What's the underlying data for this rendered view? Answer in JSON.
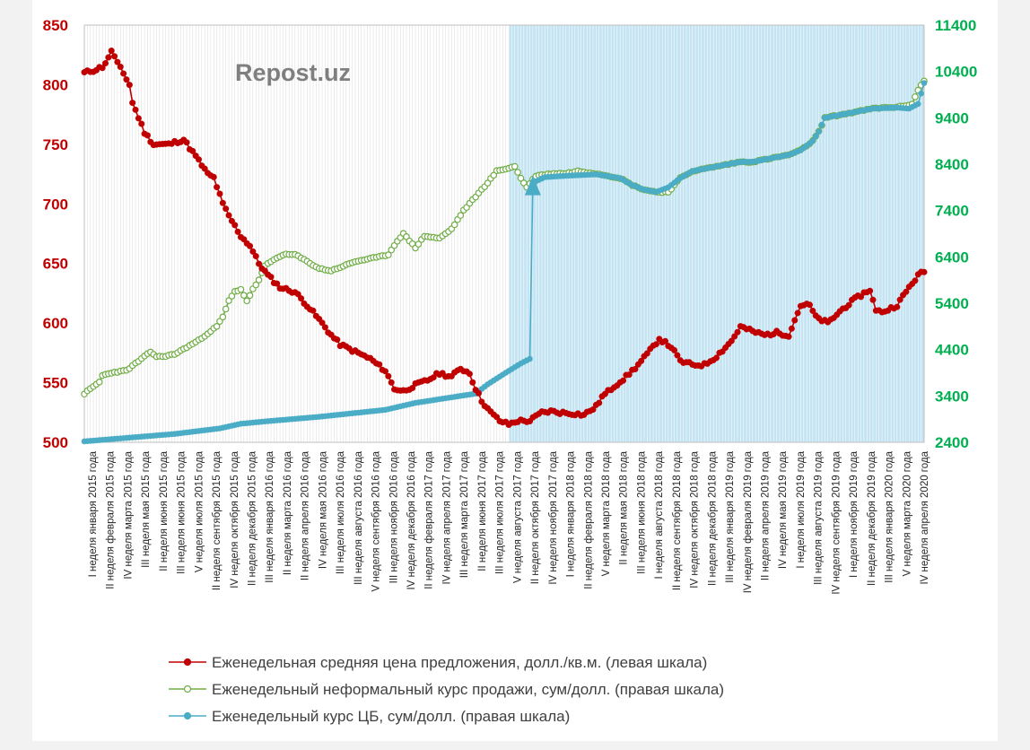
{
  "watermark": "Repost.uz",
  "chart_data": {
    "type": "line",
    "title": "",
    "xlabel": "",
    "ylabel": "",
    "ylim_left": [
      500,
      850
    ],
    "ylim_right": [
      2400,
      11400
    ],
    "left_ticks": [
      500,
      550,
      600,
      650,
      700,
      750,
      800,
      850
    ],
    "right_ticks": [
      2400,
      3400,
      4400,
      5400,
      6400,
      7400,
      8400,
      9400,
      10400,
      11400
    ],
    "n_weeks": 280,
    "shaded_from_week": 141,
    "colors": {
      "price": "#c00000",
      "informal": "#70ad47",
      "cb": "#4bacc6",
      "left_axis": "#c00000",
      "right_axis": "#00b050",
      "shade": "#c5e4f3",
      "grid": "#d9d9d9"
    },
    "x_tick_labels": [
      "I неделя января 2015 года",
      "II неделя февраля 2015 года",
      "IV неделя марта 2015 года",
      "III неделя мая 2015 года",
      "II неделя июня 2015 года",
      "III неделя июня 2015 года",
      "V неделя июля 2015 года",
      "II неделя сентября 2015 года",
      "IV неделя октября 2015 года",
      "II неделя декабря 2015 года",
      "III неделя января 2016 года",
      "II неделя марта 2016 года",
      "II неделя апреля 2016 года",
      "IV неделя мая 2016 года",
      "III неделя июля 2016 года",
      "III неделя августа 2016 года",
      "V неделя сентября 2016 года",
      "III неделя ноября 2016 года",
      "IV неделя декабря 2016 года",
      "II неделя февраля 2017 года",
      "IV неделя апреля 2017 года",
      "III неделя марта 2017 года",
      "II неделя июня 2017 года",
      "III неделя июля 2017 года",
      "V неделя августа 2017 года",
      "II неделя октября 2017 года",
      "IV неделя ноября 2017 года",
      "I неделя января 2018 года",
      "II неделя февраля 2018 года",
      "V неделя марта 2018 года",
      "II неделя мая 2018 года",
      "III неделя июня 2018 года",
      "I неделя августа 2018 года",
      "II неделя сентября 2018 года",
      "IV неделя октября 2018 года",
      "II неделя декабря 2018 года",
      "III неделя января 2019 года",
      "IV неделя февраля 2019 года",
      "II неделя апреля 2019 года",
      "IV неделя мая 2019 года",
      "I неделя июля 2019 года",
      "III неделя августа 2019 года",
      "IV неделя сентября 2019 года",
      "I неделя ноября 2019 года",
      "II неделя декабря 2019 года",
      "III неделя января 2020 года",
      "V неделя марта 2020 года",
      "IV неделя апреля 2020 года"
    ],
    "series": [
      {
        "name": "Еженедельная средняя цена предложения, долл./кв.м. (левая шкала)",
        "axis": "left",
        "marker": "filled",
        "anchors": [
          [
            0,
            810
          ],
          [
            3,
            812
          ],
          [
            6,
            815
          ],
          [
            8,
            822
          ],
          [
            9,
            829
          ],
          [
            11,
            818
          ],
          [
            14,
            805
          ],
          [
            15,
            800
          ],
          [
            16,
            785
          ],
          [
            20,
            760
          ],
          [
            23,
            750
          ],
          [
            28,
            750
          ],
          [
            33,
            754
          ],
          [
            37,
            740
          ],
          [
            41,
            725
          ],
          [
            43,
            722
          ],
          [
            46,
            700
          ],
          [
            48,
            690
          ],
          [
            52,
            673
          ],
          [
            55,
            665
          ],
          [
            58,
            650
          ],
          [
            61,
            640
          ],
          [
            65,
            630
          ],
          [
            70,
            626
          ],
          [
            74,
            615
          ],
          [
            78,
            603
          ],
          [
            82,
            590
          ],
          [
            85,
            582
          ],
          [
            90,
            576
          ],
          [
            95,
            570
          ],
          [
            100,
            560
          ],
          [
            103,
            545
          ],
          [
            106,
            543
          ],
          [
            110,
            548
          ],
          [
            114,
            552
          ],
          [
            118,
            558
          ],
          [
            122,
            555
          ],
          [
            125,
            562
          ],
          [
            128,
            558
          ],
          [
            130,
            545
          ],
          [
            132,
            535
          ],
          [
            135,
            525
          ],
          [
            138,
            518
          ],
          [
            141,
            515
          ],
          [
            144,
            518
          ],
          [
            148,
            518
          ],
          [
            152,
            525
          ],
          [
            155,
            526
          ],
          [
            158,
            525
          ],
          [
            163,
            524
          ],
          [
            166,
            523
          ],
          [
            170,
            530
          ],
          [
            172,
            538
          ],
          [
            176,
            547
          ],
          [
            180,
            555
          ],
          [
            184,
            565
          ],
          [
            188,
            577
          ],
          [
            191,
            587
          ],
          [
            195,
            580
          ],
          [
            198,
            568
          ],
          [
            202,
            565
          ],
          [
            206,
            565
          ],
          [
            210,
            572
          ],
          [
            215,
            585
          ],
          [
            218,
            597
          ],
          [
            222,
            593
          ],
          [
            226,
            590
          ],
          [
            230,
            592
          ],
          [
            234,
            590
          ],
          [
            238,
            615
          ],
          [
            241,
            615
          ],
          [
            243,
            605
          ],
          [
            247,
            600
          ],
          [
            252,
            612
          ],
          [
            256,
            620
          ],
          [
            259,
            625
          ],
          [
            261,
            628
          ],
          [
            263,
            610
          ],
          [
            266,
            610
          ],
          [
            270,
            615
          ],
          [
            274,
            630
          ],
          [
            277,
            640
          ],
          [
            280,
            645
          ],
          [
            283,
            645
          ],
          [
            287,
            645
          ],
          [
            289,
            650
          ],
          [
            290,
            655
          ]
        ]
      },
      {
        "name": "Еженедельный неформальный курс продажи, сум/долл. (правая шкала)",
        "axis": "right",
        "marker": "hollow",
        "anchors": [
          [
            0,
            3450
          ],
          [
            2,
            3550
          ],
          [
            5,
            3700
          ],
          [
            6,
            3840
          ],
          [
            9,
            3900
          ],
          [
            14,
            3950
          ],
          [
            18,
            4150
          ],
          [
            20,
            4250
          ],
          [
            22,
            4350
          ],
          [
            24,
            4250
          ],
          [
            26,
            4250
          ],
          [
            30,
            4300
          ],
          [
            34,
            4450
          ],
          [
            38,
            4600
          ],
          [
            42,
            4800
          ],
          [
            44,
            4900
          ],
          [
            46,
            5100
          ],
          [
            48,
            5450
          ],
          [
            50,
            5650
          ],
          [
            52,
            5700
          ],
          [
            54,
            5450
          ],
          [
            56,
            5700
          ],
          [
            58,
            5900
          ],
          [
            60,
            6200
          ],
          [
            62,
            6300
          ],
          [
            66,
            6450
          ],
          [
            70,
            6450
          ],
          [
            74,
            6300
          ],
          [
            78,
            6150
          ],
          [
            82,
            6100
          ],
          [
            86,
            6200
          ],
          [
            90,
            6300
          ],
          [
            94,
            6350
          ],
          [
            98,
            6400
          ],
          [
            101,
            6450
          ],
          [
            104,
            6750
          ],
          [
            106,
            6900
          ],
          [
            108,
            6750
          ],
          [
            110,
            6600
          ],
          [
            113,
            6850
          ],
          [
            118,
            6800
          ],
          [
            122,
            7000
          ],
          [
            126,
            7400
          ],
          [
            130,
            7700
          ],
          [
            134,
            8000
          ],
          [
            137,
            8250
          ],
          [
            140,
            8300
          ],
          [
            143,
            8350
          ],
          [
            145,
            8100
          ],
          [
            147,
            7900
          ],
          [
            150,
            8150
          ],
          [
            156,
            8200
          ],
          [
            160,
            8200
          ],
          [
            164,
            8250
          ],
          [
            170,
            8200
          ],
          [
            174,
            8150
          ],
          [
            178,
            8100
          ],
          [
            182,
            7950
          ],
          [
            186,
            7850
          ],
          [
            190,
            7800
          ],
          [
            194,
            7800
          ],
          [
            196,
            7950
          ],
          [
            198,
            8100
          ],
          [
            202,
            8250
          ],
          [
            206,
            8300
          ],
          [
            210,
            8350
          ],
          [
            214,
            8400
          ],
          [
            218,
            8450
          ],
          [
            222,
            8450
          ],
          [
            226,
            8500
          ],
          [
            230,
            8550
          ],
          [
            234,
            8600
          ],
          [
            238,
            8700
          ],
          [
            242,
            8900
          ],
          [
            244,
            9100
          ],
          [
            246,
            9400
          ],
          [
            250,
            9450
          ],
          [
            254,
            9500
          ],
          [
            258,
            9550
          ],
          [
            262,
            9600
          ],
          [
            266,
            9620
          ],
          [
            270,
            9630
          ],
          [
            272,
            9650
          ],
          [
            275,
            9700
          ],
          [
            277,
            10000
          ],
          [
            279,
            10200
          ],
          [
            281,
            10250
          ]
        ]
      },
      {
        "name": "Еженедельный курс ЦБ, сум/долл. (правая шкала)",
        "axis": "right",
        "marker": "filled",
        "anchors": [
          [
            0,
            2420
          ],
          [
            15,
            2500
          ],
          [
            30,
            2580
          ],
          [
            45,
            2700
          ],
          [
            52,
            2800
          ],
          [
            60,
            2850
          ],
          [
            78,
            2950
          ],
          [
            100,
            3100
          ],
          [
            110,
            3250
          ],
          [
            130,
            3450
          ],
          [
            134,
            3650
          ],
          [
            140,
            3900
          ],
          [
            145,
            4100
          ],
          [
            148,
            4200
          ],
          [
            149,
            8000
          ],
          [
            153,
            8120
          ],
          [
            160,
            8150
          ],
          [
            170,
            8180
          ],
          [
            178,
            8100
          ],
          [
            182,
            7950
          ],
          [
            186,
            7850
          ],
          [
            190,
            7800
          ],
          [
            194,
            7900
          ],
          [
            198,
            8100
          ],
          [
            202,
            8250
          ],
          [
            206,
            8300
          ],
          [
            210,
            8350
          ],
          [
            214,
            8400
          ],
          [
            218,
            8450
          ],
          [
            222,
            8450
          ],
          [
            226,
            8500
          ],
          [
            230,
            8550
          ],
          [
            234,
            8600
          ],
          [
            238,
            8700
          ],
          [
            242,
            8900
          ],
          [
            244,
            9100
          ],
          [
            246,
            9400
          ],
          [
            250,
            9450
          ],
          [
            254,
            9500
          ],
          [
            258,
            9550
          ],
          [
            262,
            9600
          ],
          [
            266,
            9610
          ],
          [
            270,
            9620
          ],
          [
            274,
            9600
          ],
          [
            277,
            9700
          ],
          [
            279,
            10150
          ],
          [
            281,
            10200
          ]
        ]
      }
    ]
  }
}
